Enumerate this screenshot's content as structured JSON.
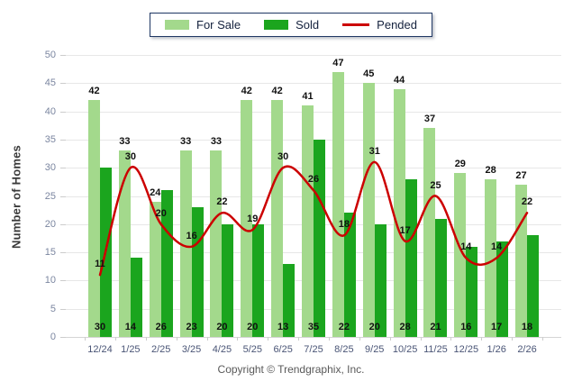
{
  "chart_data": {
    "type": "bar",
    "title": "",
    "categories": [
      "12/24",
      "1/25",
      "2/25",
      "3/25",
      "4/25",
      "5/25",
      "6/25",
      "7/25",
      "8/25",
      "9/25",
      "10/25",
      "11/25",
      "12/25",
      "1/26",
      "2/26"
    ],
    "series": [
      {
        "name": "For Sale",
        "type": "bar",
        "color": "#A3D98C",
        "values": [
          42,
          33,
          24,
          33,
          33,
          42,
          42,
          41,
          47,
          45,
          44,
          37,
          29,
          28,
          27
        ]
      },
      {
        "name": "Sold",
        "type": "bar",
        "color": "#1BA51E",
        "values": [
          30,
          14,
          26,
          23,
          20,
          20,
          13,
          35,
          22,
          20,
          28,
          21,
          16,
          17,
          18
        ]
      },
      {
        "name": "Pended",
        "type": "line",
        "color": "#CC0000",
        "values": [
          11,
          30,
          20,
          16,
          22,
          19,
          30,
          26,
          18,
          31,
          17,
          25,
          14,
          14,
          22
        ]
      }
    ],
    "xlabel": "",
    "ylabel": "Number of Homes",
    "ylim": [
      0,
      50
    ],
    "ytick_step": 5,
    "grid": true,
    "legend_position": "top"
  },
  "colors": {
    "for_sale": "#A3D98C",
    "sold": "#1BA51E",
    "pended": "#CC0000",
    "legend_border": "#203864",
    "gridline": "#E7E7E7",
    "y_tick_text": "#7B86A0",
    "x_tick_text": "#4A5576",
    "value_label_text": "#111111",
    "copyright_text": "#595959"
  },
  "footer": {
    "copyright": "Copyright © Trendgraphix, Inc."
  }
}
